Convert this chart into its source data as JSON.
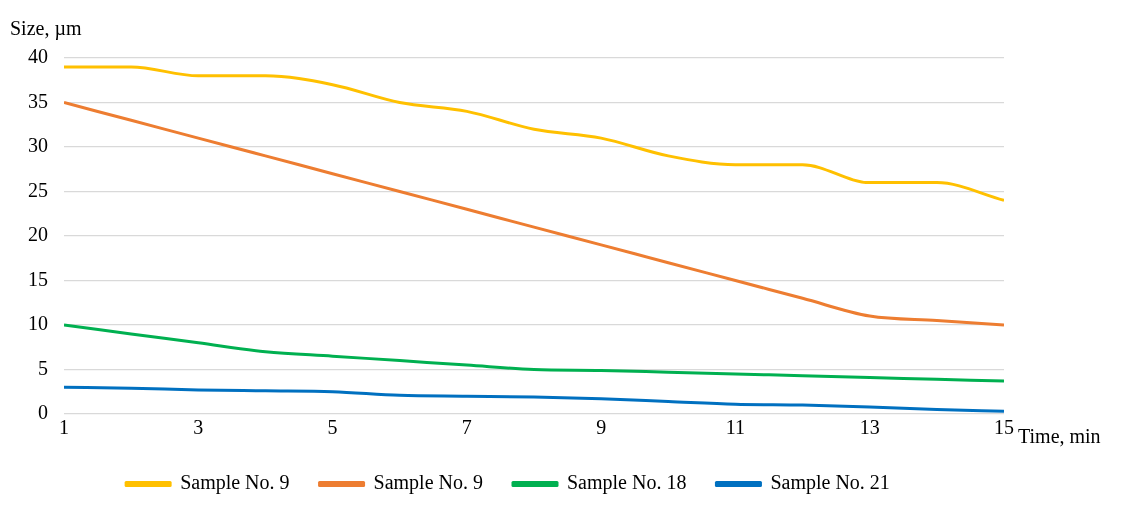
{
  "chart_data": {
    "type": "line",
    "ylabel": "Size, µm",
    "xlabel": "Time, min",
    "x": [
      1,
      2,
      3,
      4,
      5,
      6,
      7,
      8,
      9,
      10,
      11,
      12,
      13,
      14,
      15
    ],
    "series": [
      {
        "name": "Sample No. 9",
        "color": "#ffc000",
        "values": [
          39,
          39,
          38,
          38,
          37,
          35,
          34,
          32,
          31,
          29,
          28,
          28,
          26,
          26,
          24
        ]
      },
      {
        "name": "Sample No. 9",
        "color": "#ed7d31",
        "values": [
          35,
          33,
          31,
          29,
          27,
          25,
          23,
          21,
          19,
          17,
          15,
          13,
          11,
          10.5,
          10
        ]
      },
      {
        "name": "Sample No. 18",
        "color": "#00b050",
        "values": [
          10,
          9,
          8,
          7,
          6.5,
          6,
          5.5,
          5,
          4.9,
          4.7,
          4.5,
          4.3,
          4.1,
          3.9,
          3.7
        ]
      },
      {
        "name": "Sample No. 21",
        "color": "#0070c0",
        "values": [
          3,
          2.9,
          2.7,
          2.6,
          2.5,
          2.1,
          2,
          1.9,
          1.7,
          1.4,
          1.1,
          1,
          0.8,
          0.5,
          0.3
        ]
      }
    ],
    "xlim": [
      1,
      15
    ],
    "xticks": [
      1,
      3,
      5,
      7,
      9,
      11,
      13,
      15
    ],
    "ylim": [
      0,
      40
    ],
    "yticks": [
      0,
      5,
      10,
      15,
      20,
      25,
      30,
      35,
      40
    ],
    "grid": "y",
    "legend": "bottom",
    "marker": "none",
    "line_style": "solid"
  }
}
